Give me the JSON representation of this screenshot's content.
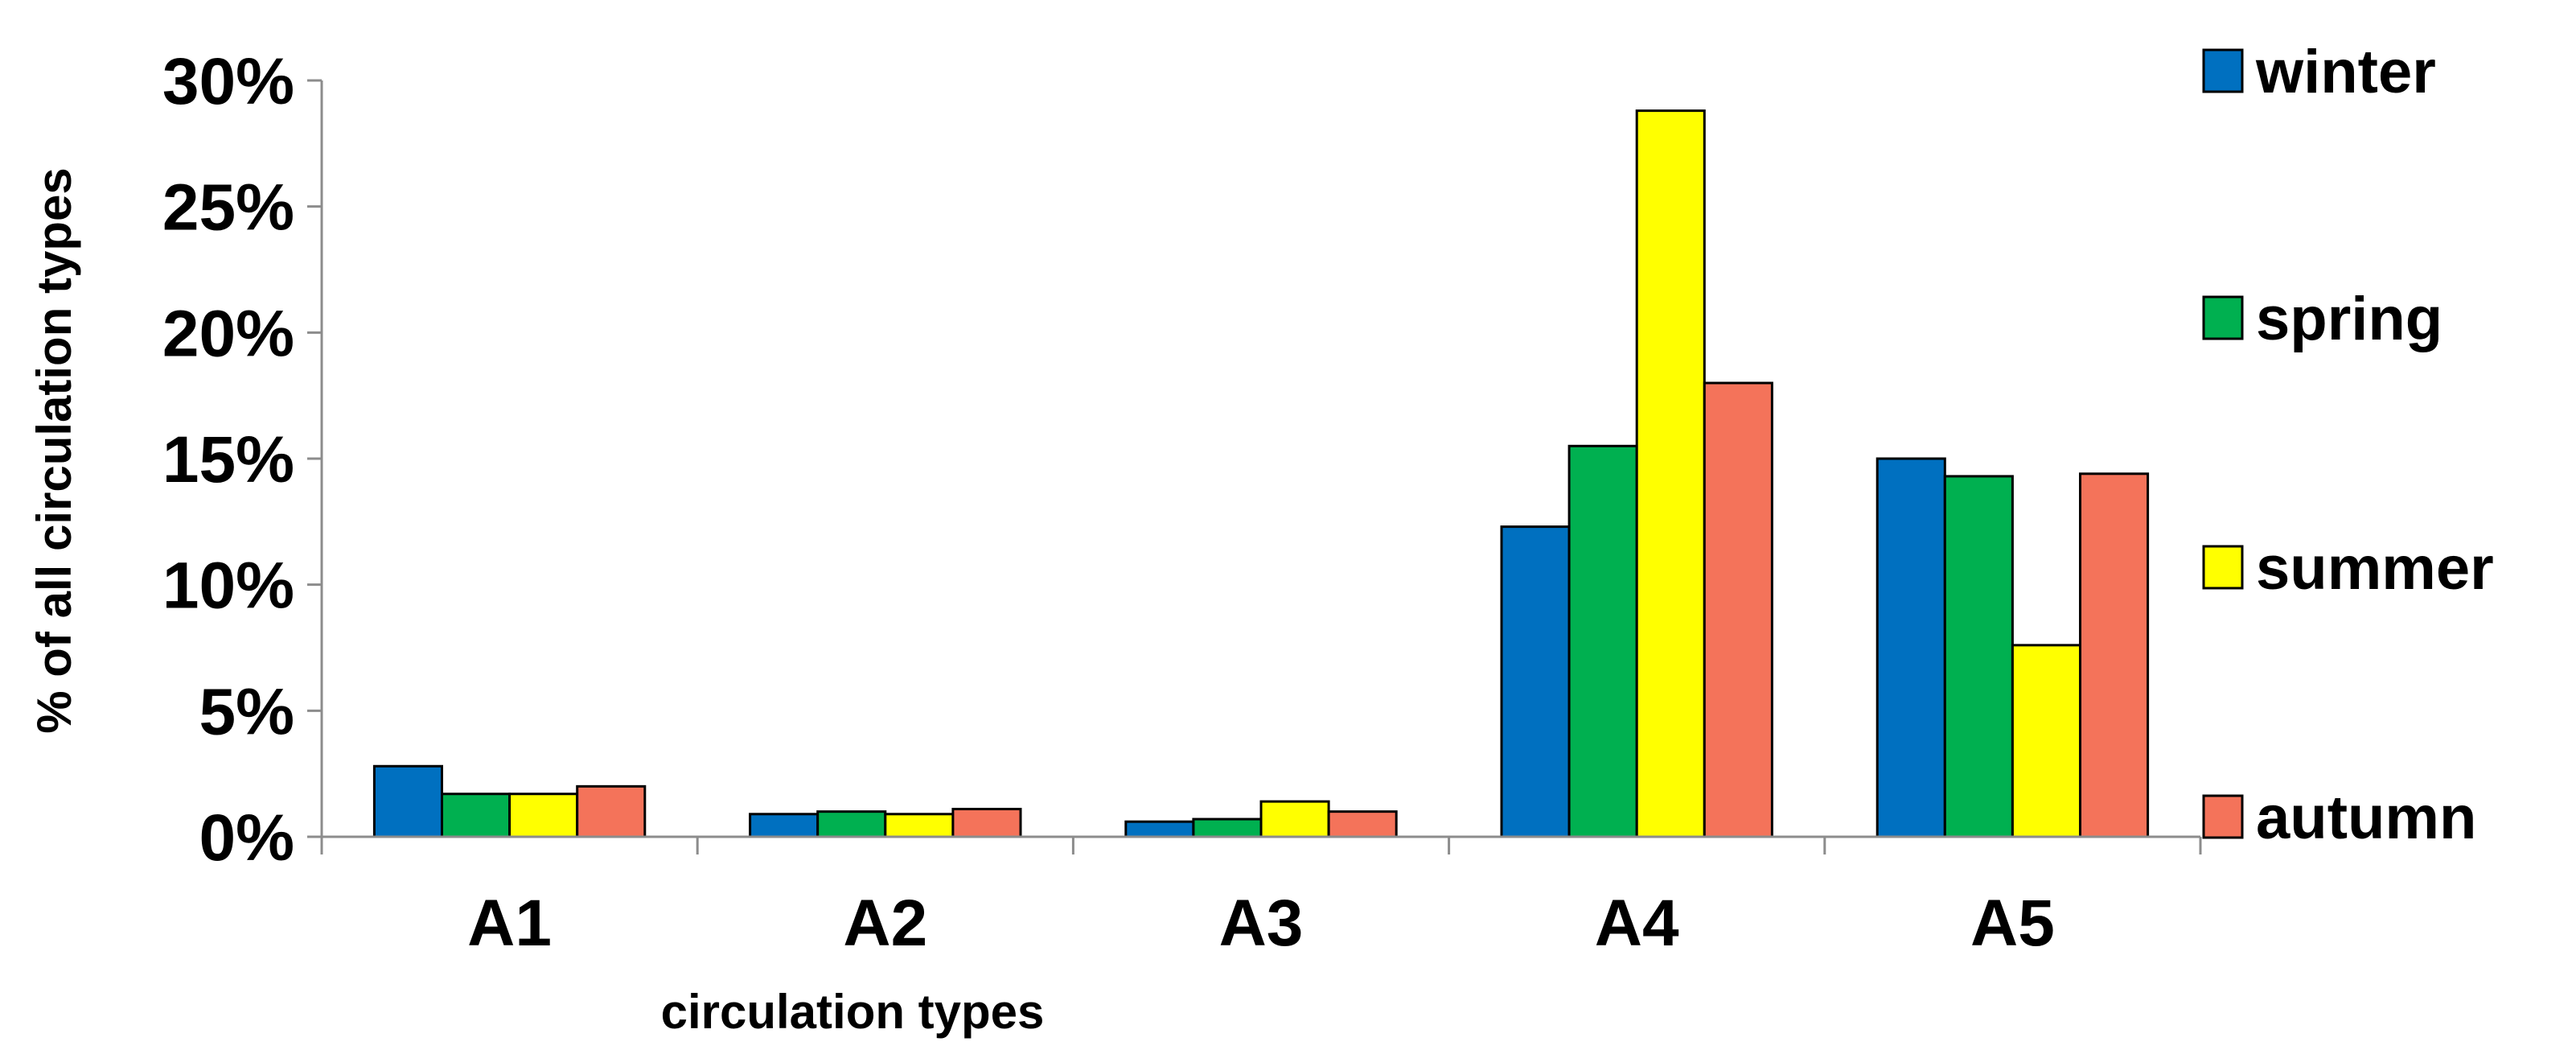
{
  "chart_data": {
    "type": "bar",
    "title": "",
    "xlabel": "circulation types",
    "ylabel": "% of all circulation types",
    "categories": [
      "A1",
      "A2",
      "A3",
      "A4",
      "A5"
    ],
    "ylim": [
      0,
      30
    ],
    "yticks": [
      0,
      5,
      10,
      15,
      20,
      25,
      30
    ],
    "ytick_labels": [
      "0%",
      "5%",
      "10%",
      "15%",
      "20%",
      "25%",
      "30%"
    ],
    "legend_position": "right",
    "grid": false,
    "series": [
      {
        "name": "winter",
        "color": "#0070c0",
        "values": [
          2.8,
          0.9,
          0.6,
          12.3,
          15.0
        ]
      },
      {
        "name": "spring",
        "color": "#00b050",
        "values": [
          1.7,
          1.0,
          0.7,
          15.5,
          14.3
        ]
      },
      {
        "name": "summer",
        "color": "#ffff00",
        "values": [
          1.7,
          0.9,
          1.4,
          28.8,
          7.6
        ]
      },
      {
        "name": "autumn",
        "color": "#f4735a",
        "values": [
          2.0,
          1.1,
          1.0,
          18.0,
          14.4
        ]
      }
    ]
  }
}
